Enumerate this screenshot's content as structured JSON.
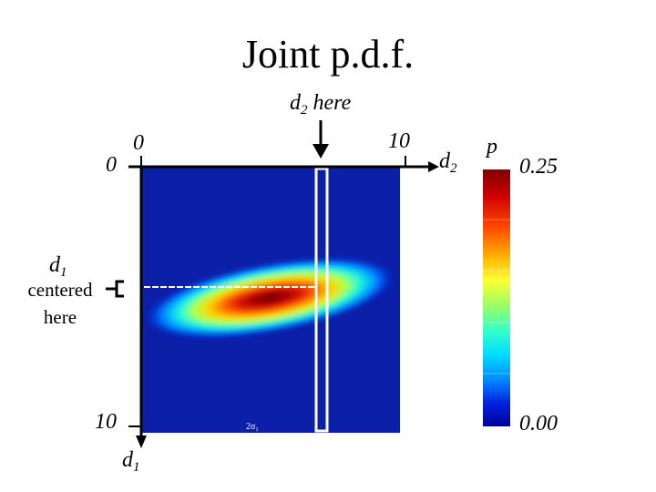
{
  "title": "Joint p.d.f.",
  "d2_marker": {
    "base": "d",
    "sub": "2",
    "suffix": " here"
  },
  "d2_axis": {
    "start": "0",
    "end": "10",
    "name_base": "d",
    "name_sub": "2"
  },
  "d1_axis": {
    "start": "0",
    "end": "10",
    "name_base": "d",
    "name_sub": "1"
  },
  "d1_marker": {
    "base": "d",
    "sub": "1",
    "line1": "centered",
    "line2": "here"
  },
  "sigma_label": "2σ₁",
  "colorbar": {
    "label": "p",
    "max": "0.25",
    "min": "0.00"
  },
  "colors": {
    "background": "#0c1fa8",
    "axis": "#000000",
    "highlight": "#ffffff",
    "colormap": [
      "#800000",
      "#cc0000",
      "#ff3300",
      "#ff8800",
      "#ffcc00",
      "#ccff33",
      "#66ff99",
      "#00ffff",
      "#00aaff",
      "#0055ff",
      "#0000cc",
      "#000080"
    ]
  }
}
